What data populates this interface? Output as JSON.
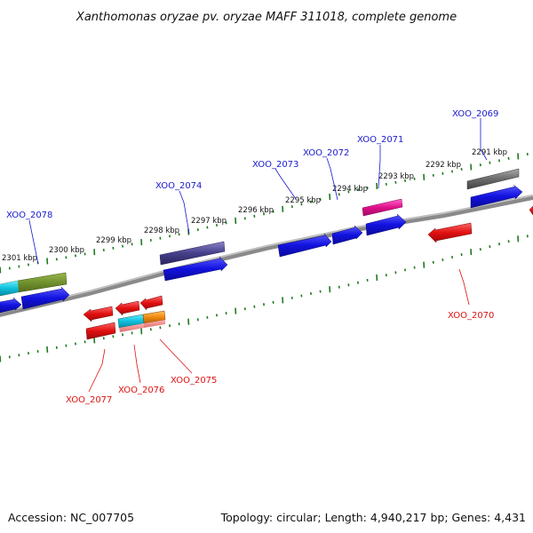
{
  "header": {
    "title": "Xanthomonas oryzae pv. oryzae MAFF 311018, complete genome"
  },
  "footer": {
    "accession": "Accession: NC_007705",
    "summary": "Topology: circular; Length: 4,940,217 bp; Genes: 4,431"
  },
  "ticks": [
    "2291 kbp",
    "2292 kbp",
    "2293 kbp",
    "2294 kbp",
    "2295 kbp",
    "2296 kbp",
    "2297 kbp",
    "2298 kbp",
    "2299 kbp",
    "2300 kbp",
    "2301 kbp"
  ],
  "labels": {
    "forward": [
      "XOO_2069",
      "XOO_2071",
      "XOO_2072",
      "XOO_2073",
      "XOO_2074",
      "XOO_2078"
    ],
    "reverse": [
      "XOO_2070",
      "XOO_2075",
      "XOO_2076",
      "XOO_2077"
    ]
  },
  "colors": {
    "forward_cds": "#1212e0",
    "reverse_cds": "#e01010",
    "backbone": "#8a8a8a",
    "tick": "#1e7a1e",
    "forward_label": "#1a1acc",
    "reverse_label": "#dd1111"
  }
}
